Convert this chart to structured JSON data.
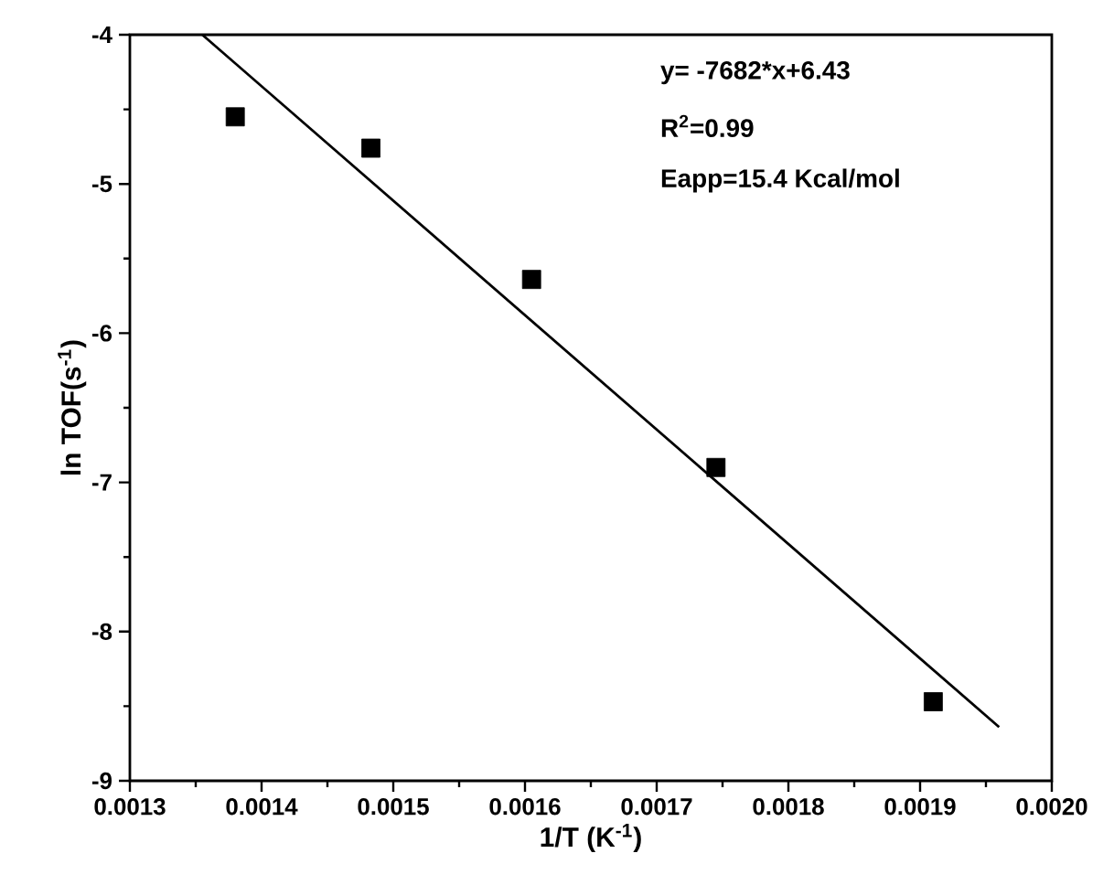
{
  "chart_data": {
    "type": "scatter",
    "xlabel": "1/T (K$^{-1}$)",
    "ylabel": "ln TOF(s$^{-1}$)",
    "xlim": [
      0.0013,
      0.002
    ],
    "ylim": [
      -9,
      -4
    ],
    "xticks": [
      0.0013,
      0.0014,
      0.0015,
      0.0016,
      0.0017,
      0.0018,
      0.0019,
      {
        "value": 0.002,
        "label": "0.0020"
      }
    ],
    "yticks": [
      -9,
      -8,
      -7,
      -6,
      -5,
      -4
    ],
    "marker": "square",
    "grid": false,
    "annotations": [
      "y= -7682*x+6.43",
      "R$^{2}$=0.99",
      "Eapp=15.4 Kcal/mol"
    ],
    "series": [
      {
        "color": "#000000",
        "x": [
          0.00138,
          0.001483,
          0.001605,
          0.001745,
          0.00191
        ],
        "values": [
          -4.55,
          -4.76,
          -5.64,
          -6.9,
          -8.47
        ]
      },
      {
        "type": "line",
        "color": "#000000",
        "marker": "none",
        "line_style": "solid",
        "x": [
          0.001355,
          0.00196
        ],
        "values": [
          -4.0,
          -8.64
        ]
      }
    ]
  }
}
